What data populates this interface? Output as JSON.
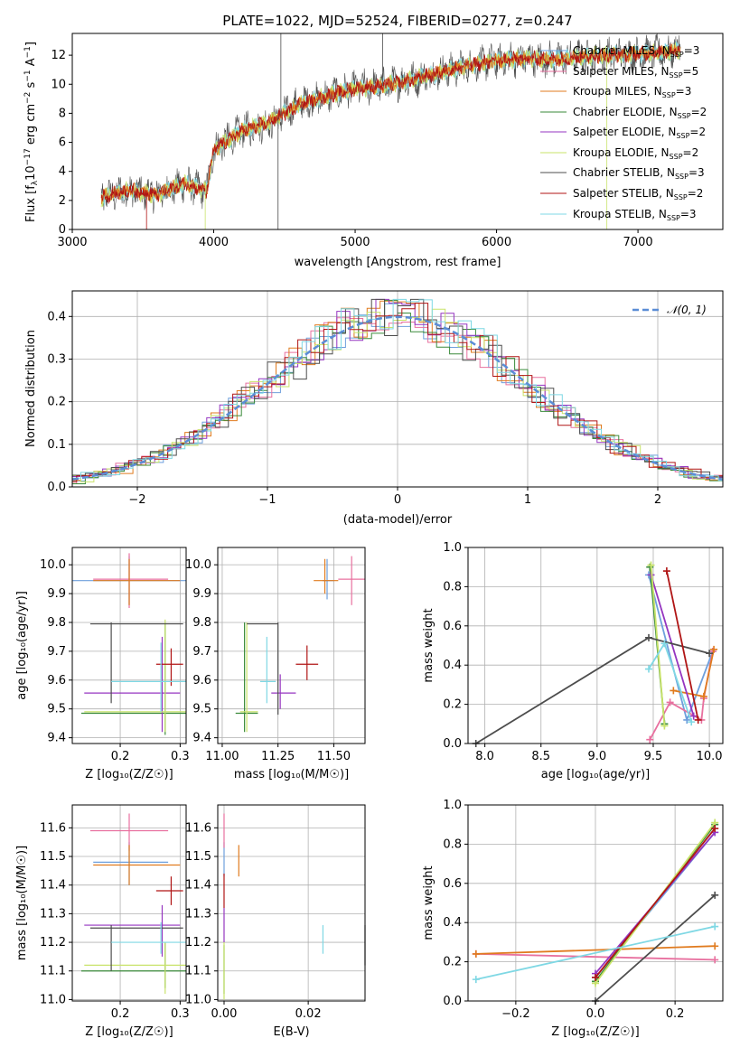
{
  "colors": {
    "Chabrier MILES": "#6e9fdc",
    "Salpeter MILES": "#e8709f",
    "Kroupa MILES": "#e07b1f",
    "Chabrier ELODIE": "#3a8a3a",
    "Salpeter ELODIE": "#9535c0",
    "Kroupa ELODIE": "#c9e36a",
    "Chabrier STELIB": "#4d4d4d",
    "Salpeter STELIB": "#b01515",
    "Kroupa STELIB": "#7fd8e4"
  },
  "legend_labels": {
    "l1": {
      "pre": "Chabrier MILES, N",
      "sub": "SSP",
      "post": "=3"
    },
    "l2": {
      "pre": "Salpeter MILES, N",
      "sub": "SSP",
      "post": "=5"
    },
    "l3": {
      "pre": "Kroupa MILES, N",
      "sub": "SSP",
      "post": "=3"
    },
    "l4": {
      "pre": "Chabrier ELODIE, N",
      "sub": "SSP",
      "post": "=2"
    },
    "l5": {
      "pre": "Salpeter ELODIE, N",
      "sub": "SSP",
      "post": "=2"
    },
    "l6": {
      "pre": "Kroupa ELODIE, N",
      "sub": "SSP",
      "post": "=2"
    },
    "l7": {
      "pre": "Chabrier STELIB, N",
      "sub": "SSP",
      "post": "=3"
    },
    "l8": {
      "pre": "Salpeter STELIB, N",
      "sub": "SSP",
      "post": "=2"
    },
    "l9": {
      "pre": "Kroupa STELIB, N",
      "sub": "SSP",
      "post": "=3"
    }
  },
  "chart_data": [
    {
      "id": "spectrum",
      "type": "line",
      "title": "PLATE=1022, MJD=52524, FIBERID=0277, z=0.247",
      "xlabel": "wavelength [Angstrom, rest frame]",
      "ylabel": {
        "pre": "Flux [f",
        "sub": "λ",
        "mid": "10",
        "sup1": "−17",
        "mid2": " erg cm",
        "sup2": "−2",
        "mid3": " s",
        "sup3": "−1",
        "mid4": " A",
        "sup4": "−1",
        "post": "]"
      },
      "xlim": [
        3000,
        7600
      ],
      "ylim": [
        0,
        13.5
      ],
      "xticks": [
        3000,
        4000,
        5000,
        6000,
        7000
      ],
      "yticks": [
        0,
        2,
        4,
        6,
        8,
        10,
        12
      ],
      "continuum": [
        [
          3200,
          2.2
        ],
        [
          3400,
          2.7
        ],
        [
          3600,
          2.4
        ],
        [
          3800,
          3.2
        ],
        [
          3950,
          2.6
        ],
        [
          4000,
          5.5
        ],
        [
          4200,
          6.8
        ],
        [
          4400,
          7.4
        ],
        [
          4600,
          8.6
        ],
        [
          4800,
          9.2
        ],
        [
          5000,
          9.7
        ],
        [
          5200,
          9.9
        ],
        [
          5400,
          10.3
        ],
        [
          5600,
          10.8
        ],
        [
          5800,
          11.3
        ],
        [
          6000,
          11.6
        ],
        [
          6200,
          11.8
        ],
        [
          6400,
          11.7
        ],
        [
          6600,
          11.9
        ],
        [
          6800,
          12.0
        ],
        [
          7000,
          12.1
        ],
        [
          7200,
          12.2
        ],
        [
          7300,
          12.4
        ]
      ],
      "legend_position": "upper right"
    },
    {
      "id": "histogram",
      "type": "bar",
      "xlabel": "(data-model)/error",
      "ylabel": "Normed distribution",
      "xlim": [
        -2.5,
        2.5
      ],
      "ylim": [
        0,
        0.46
      ],
      "xticks": [
        -2,
        -1,
        0,
        1,
        2
      ],
      "yticks": [
        0.0,
        0.1,
        0.2,
        0.3,
        0.4
      ],
      "bin_width": 0.1,
      "gaussian": {
        "name": "𝒩(0, 1)",
        "mean": 0,
        "sigma": 1
      },
      "legend_position": "upper right"
    },
    {
      "id": "age-vs-Z",
      "type": "scatter",
      "xlabel": "Z [log₁₀(Z/Z☉)]",
      "ylabel": "age  [log₁₀(age/yr)]",
      "xlim": [
        0.12,
        0.31
      ],
      "ylim": [
        9.38,
        10.06
      ],
      "xticks": [
        0.2,
        0.3
      ],
      "yticks": [
        9.4,
        9.5,
        9.6,
        9.7,
        9.8,
        9.9,
        10.0
      ],
      "points": [
        {
          "series": "Chabrier MILES",
          "x": 0.215,
          "y": 9.945,
          "xerr": [
            0.12,
            0.31
          ],
          "yerr": [
            9.86,
            10.03
          ]
        },
        {
          "series": "Salpeter MILES",
          "x": 0.215,
          "y": 9.95,
          "xerr": [
            0.155,
            0.28
          ],
          "yerr": [
            9.85,
            10.04
          ]
        },
        {
          "series": "Kroupa MILES",
          "x": 0.215,
          "y": 9.945,
          "xerr": [
            0.155,
            0.3
          ],
          "yerr": [
            9.86,
            10.02
          ]
        },
        {
          "series": "Chabrier ELODIE",
          "x": 0.275,
          "y": 9.485,
          "xerr": [
            0.135,
            0.31
          ],
          "yerr": [
            9.41,
            9.8
          ]
        },
        {
          "series": "Salpeter ELODIE",
          "x": 0.27,
          "y": 9.555,
          "xerr": [
            0.14,
            0.3
          ],
          "yerr": [
            9.42,
            9.75
          ]
        },
        {
          "series": "Kroupa ELODIE",
          "x": 0.275,
          "y": 9.49,
          "xerr": [
            0.14,
            0.31
          ],
          "yerr": [
            9.42,
            9.81
          ]
        },
        {
          "series": "Chabrier STELIB",
          "x": 0.185,
          "y": 9.795,
          "xerr": [
            0.15,
            0.305
          ],
          "yerr": [
            9.52,
            9.8
          ]
        },
        {
          "series": "Salpeter STELIB",
          "x": 0.285,
          "y": 9.655,
          "xerr": [
            0.26,
            0.305
          ],
          "yerr": [
            9.58,
            9.71
          ]
        },
        {
          "series": "Kroupa STELIB",
          "x": 0.268,
          "y": 9.595,
          "xerr": [
            0.185,
            0.31
          ],
          "yerr": [
            9.49,
            9.73
          ]
        }
      ]
    },
    {
      "id": "age-vs-mass",
      "type": "scatter",
      "xlabel": "mass [log₁₀(M/M☉)]",
      "ylabel": "",
      "xlim": [
        10.98,
        11.64
      ],
      "ylim": [
        9.38,
        10.06
      ],
      "xticks": [
        11.0,
        11.25,
        11.5
      ],
      "yticks": [
        9.4,
        9.5,
        9.6,
        9.7,
        9.8,
        9.9,
        10.0
      ],
      "points": [
        {
          "series": "Chabrier MILES",
          "x": 11.47,
          "y": 9.945,
          "xerr": [
            11.45,
            11.5
          ],
          "yerr": [
            9.88,
            10.02
          ]
        },
        {
          "series": "Salpeter MILES",
          "x": 11.58,
          "y": 9.95,
          "xerr": [
            11.52,
            11.64
          ],
          "yerr": [
            9.86,
            10.03
          ]
        },
        {
          "series": "Kroupa MILES",
          "x": 11.46,
          "y": 9.945,
          "xerr": [
            11.41,
            11.52
          ],
          "yerr": [
            9.9,
            10.02
          ]
        },
        {
          "series": "Chabrier ELODIE",
          "x": 11.1,
          "y": 9.485,
          "xerr": [
            11.06,
            11.16
          ],
          "yerr": [
            9.42,
            9.8
          ]
        },
        {
          "series": "Salpeter ELODIE",
          "x": 11.26,
          "y": 9.555,
          "xerr": [
            11.22,
            11.33
          ],
          "yerr": [
            9.5,
            9.62
          ]
        },
        {
          "series": "Kroupa ELODIE",
          "x": 11.11,
          "y": 9.49,
          "xerr": [
            11.08,
            11.16
          ],
          "yerr": [
            9.42,
            9.8
          ]
        },
        {
          "series": "Chabrier STELIB",
          "x": 11.25,
          "y": 9.795,
          "xerr": [
            11.11,
            11.25
          ],
          "yerr": [
            9.48,
            9.8
          ]
        },
        {
          "series": "Salpeter STELIB",
          "x": 11.38,
          "y": 9.655,
          "xerr": [
            11.33,
            11.43
          ],
          "yerr": [
            9.6,
            9.72
          ]
        },
        {
          "series": "Kroupa STELIB",
          "x": 11.2,
          "y": 9.595,
          "xerr": [
            11.17,
            11.24
          ],
          "yerr": [
            9.52,
            9.75
          ]
        }
      ]
    },
    {
      "id": "weight-vs-age",
      "type": "line",
      "xlabel": "age  [log₁₀(age/yr)]",
      "ylabel": "mass weight",
      "xlim": [
        7.85,
        10.12
      ],
      "ylim": [
        0,
        1.0
      ],
      "xticks": [
        8.0,
        8.5,
        9.0,
        9.5,
        10.0
      ],
      "yticks": [
        0.0,
        0.2,
        0.4,
        0.6,
        0.8,
        1.0
      ],
      "grid": true,
      "series": [
        {
          "name": "Chabrier MILES",
          "points": [
            [
              9.46,
              0.86
            ],
            [
              9.8,
              0.12
            ],
            [
              10.03,
              0.47
            ]
          ]
        },
        {
          "name": "Salpeter MILES",
          "points": [
            [
              9.47,
              0.02
            ],
            [
              9.65,
              0.21
            ],
            [
              9.93,
              0.12
            ],
            [
              9.95,
              0.23
            ],
            [
              10.03,
              0.47
            ]
          ]
        },
        {
          "name": "Kroupa MILES",
          "points": [
            [
              9.68,
              0.27
            ],
            [
              9.95,
              0.24
            ],
            [
              10.04,
              0.48
            ]
          ]
        },
        {
          "name": "Chabrier ELODIE",
          "points": [
            [
              9.47,
              0.9
            ],
            [
              9.6,
              0.1
            ]
          ]
        },
        {
          "name": "Salpeter ELODIE",
          "points": [
            [
              9.48,
              0.86
            ],
            [
              9.86,
              0.14
            ]
          ]
        },
        {
          "name": "Kroupa ELODIE",
          "points": [
            [
              9.48,
              0.91
            ],
            [
              9.6,
              0.09
            ]
          ]
        },
        {
          "name": "Chabrier STELIB",
          "points": [
            [
              7.92,
              0.0
            ],
            [
              9.46,
              0.54
            ],
            [
              10.0,
              0.46
            ]
          ]
        },
        {
          "name": "Salpeter STELIB",
          "points": [
            [
              9.62,
              0.88
            ],
            [
              9.9,
              0.12
            ]
          ]
        },
        {
          "name": "Kroupa STELIB",
          "points": [
            [
              9.46,
              0.38
            ],
            [
              9.6,
              0.51
            ],
            [
              9.84,
              0.11
            ]
          ]
        }
      ]
    },
    {
      "id": "mass-vs-Z",
      "type": "scatter",
      "xlabel": "Z [log₁₀(Z/Z☉)]",
      "ylabel": "mass [log₁₀(M/M☉)]",
      "xlim": [
        0.12,
        0.31
      ],
      "ylim": [
        10.995,
        11.68
      ],
      "xticks": [
        0.2,
        0.3
      ],
      "yticks": [
        11.0,
        11.1,
        11.2,
        11.3,
        11.4,
        11.5,
        11.6
      ],
      "points": [
        {
          "series": "Chabrier MILES",
          "x": 0.215,
          "y": 11.48,
          "xerr": [
            0.155,
            0.28
          ],
          "yerr": [
            11.4,
            11.55
          ]
        },
        {
          "series": "Salpeter MILES",
          "x": 0.215,
          "y": 11.59,
          "xerr": [
            0.15,
            0.28
          ],
          "yerr": [
            11.52,
            11.65
          ]
        },
        {
          "series": "Kroupa MILES",
          "x": 0.215,
          "y": 11.47,
          "xerr": [
            0.155,
            0.3
          ],
          "yerr": [
            11.4,
            11.54
          ]
        },
        {
          "series": "Chabrier ELODIE",
          "x": 0.275,
          "y": 11.1,
          "xerr": [
            0.135,
            0.31
          ],
          "yerr": [
            11.04,
            11.2
          ]
        },
        {
          "series": "Salpeter ELODIE",
          "x": 0.27,
          "y": 11.26,
          "xerr": [
            0.14,
            0.3
          ],
          "yerr": [
            11.15,
            11.33
          ]
        },
        {
          "series": "Kroupa ELODIE",
          "x": 0.275,
          "y": 11.12,
          "xerr": [
            0.14,
            0.31
          ],
          "yerr": [
            11.02,
            11.2
          ]
        },
        {
          "series": "Chabrier STELIB",
          "x": 0.185,
          "y": 11.25,
          "xerr": [
            0.15,
            0.305
          ],
          "yerr": [
            11.1,
            11.26
          ]
        },
        {
          "series": "Salpeter STELIB",
          "x": 0.285,
          "y": 11.38,
          "xerr": [
            0.26,
            0.305
          ],
          "yerr": [
            11.33,
            11.43
          ]
        },
        {
          "series": "Kroupa STELIB",
          "x": 0.268,
          "y": 11.2,
          "xerr": [
            0.185,
            0.31
          ],
          "yerr": [
            11.16,
            11.27
          ]
        }
      ]
    },
    {
      "id": "mass-vs-ebv",
      "type": "scatter",
      "xlabel": "E(B-V)",
      "ylabel": "",
      "xlim": [
        -0.0015,
        0.0335
      ],
      "ylim": [
        10.995,
        11.68
      ],
      "xticks": [
        0.0,
        0.02
      ],
      "yticks": [
        11.0,
        11.1,
        11.2,
        11.3,
        11.4,
        11.5,
        11.6
      ],
      "points": [
        {
          "series": "Chabrier MILES",
          "x": 0.0,
          "y": 11.48,
          "yerr": [
            11.43,
            11.55
          ]
        },
        {
          "series": "Salpeter MILES",
          "x": 0.0,
          "y": 11.59,
          "yerr": [
            11.53,
            11.65
          ]
        },
        {
          "series": "Kroupa MILES",
          "x": 0.0035,
          "y": 11.47,
          "yerr": [
            11.43,
            11.54
          ]
        },
        {
          "series": "Chabrier ELODIE",
          "x": 0.0,
          "y": 11.1,
          "yerr": [
            11.02,
            11.19
          ]
        },
        {
          "series": "Salpeter ELODIE",
          "x": 0.0,
          "y": 11.26,
          "yerr": [
            11.2,
            11.32
          ]
        },
        {
          "series": "Kroupa ELODIE",
          "x": 0.0,
          "y": 11.12,
          "yerr": [
            11.0,
            11.2
          ]
        },
        {
          "series": "Chabrier STELIB",
          "x": 0.0335,
          "y": 11.19,
          "yerr": [
            11.12,
            11.26
          ]
        },
        {
          "series": "Salpeter STELIB",
          "x": 0.0,
          "y": 11.38,
          "yerr": [
            11.32,
            11.44
          ]
        },
        {
          "series": "Kroupa STELIB",
          "x": 0.0235,
          "y": 11.21,
          "yerr": [
            11.16,
            11.26
          ]
        }
      ]
    },
    {
      "id": "weight-vs-Z",
      "type": "line",
      "xlabel": "Z [log₁₀(Z/Z☉)]",
      "ylabel": "mass weight",
      "xlim": [
        -0.32,
        0.32
      ],
      "ylim": [
        0,
        1.0
      ],
      "xticks": [
        -0.2,
        0.0,
        0.2
      ],
      "yticks": [
        0.0,
        0.2,
        0.4,
        0.6,
        0.8,
        1.0
      ],
      "grid": true,
      "series": [
        {
          "name": "Chabrier MILES",
          "points": [
            [
              0.0,
              0.12
            ],
            [
              0.3,
              0.86
            ]
          ]
        },
        {
          "name": "Salpeter MILES",
          "points": [
            [
              -0.3,
              0.24
            ],
            [
              0.3,
              0.21
            ]
          ]
        },
        {
          "name": "Kroupa MILES",
          "points": [
            [
              -0.3,
              0.24
            ],
            [
              0.3,
              0.28
            ]
          ]
        },
        {
          "name": "Chabrier ELODIE",
          "points": [
            [
              0.0,
              0.1
            ],
            [
              0.3,
              0.9
            ]
          ]
        },
        {
          "name": "Salpeter ELODIE",
          "points": [
            [
              0.0,
              0.14
            ],
            [
              0.3,
              0.86
            ]
          ]
        },
        {
          "name": "Kroupa ELODIE",
          "points": [
            [
              0.0,
              0.09
            ],
            [
              0.3,
              0.91
            ]
          ]
        },
        {
          "name": "Chabrier STELIB",
          "points": [
            [
              0.0,
              0.0
            ],
            [
              0.3,
              0.54
            ]
          ]
        },
        {
          "name": "Salpeter STELIB",
          "points": [
            [
              0.0,
              0.12
            ],
            [
              0.3,
              0.88
            ]
          ]
        },
        {
          "name": "Kroupa STELIB",
          "points": [
            [
              -0.3,
              0.11
            ],
            [
              0.3,
              0.38
            ]
          ]
        }
      ]
    }
  ]
}
